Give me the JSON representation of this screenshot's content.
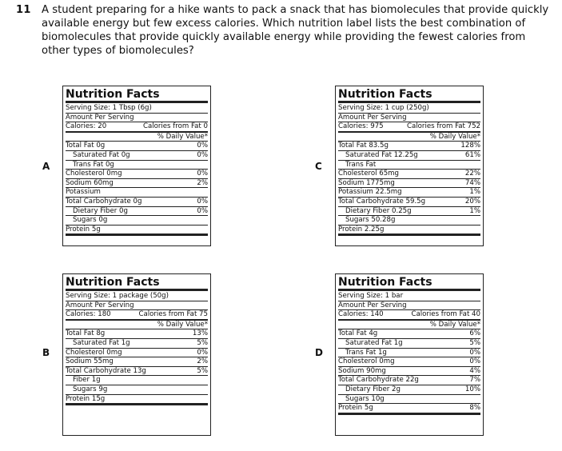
{
  "question": {
    "number": "11",
    "text": "A student preparing for a hike wants to pack a snack that has biomolecules that provide quickly available energy but few excess calories. Which nutrition label lists the best combination of biomolecules that provide quickly available energy while providing the fewest calories from other types of biomolecules?"
  },
  "options": {
    "A": {
      "letter": "A",
      "title": "Nutrition Facts",
      "serving": "Serving Size: 1 Tbsp (6g)",
      "amount": "Amount Per Serving",
      "calories": "Calories: 20",
      "calories_fat": "Calories from Fat 0",
      "dv_header": "% Daily Value*",
      "rows": [
        {
          "l": "Total Fat 0g",
          "r": "0%"
        },
        {
          "l": "Saturated Fat 0g",
          "r": "0%",
          "sub": true
        },
        {
          "l": "Trans Fat 0g",
          "r": "",
          "sub": true
        },
        {
          "l": "Cholesterol 0mg",
          "r": "0%"
        },
        {
          "l": "Sodium 60mg",
          "r": "2%"
        },
        {
          "l": "Potassium",
          "r": ""
        },
        {
          "l": "Total Carbohydrate 0g",
          "r": "0%"
        },
        {
          "l": "Dietary Fiber 0g",
          "r": "0%",
          "sub": true
        },
        {
          "l": "Sugars 0g",
          "r": "",
          "sub": true
        },
        {
          "l": "Protein 5g",
          "r": ""
        }
      ]
    },
    "B": {
      "letter": "B",
      "title": "Nutrition Facts",
      "serving": "Serving Size: 1 package (50g)",
      "amount": "Amount Per Serving",
      "calories": "Calories: 180",
      "calories_fat": "Calories from Fat 75",
      "dv_header": "% Daily Value*",
      "rows": [
        {
          "l": "Total Fat 8g",
          "r": "13%"
        },
        {
          "l": "Saturated Fat 1g",
          "r": "5%",
          "sub": true
        },
        {
          "l": "Cholesterol 0mg",
          "r": "0%"
        },
        {
          "l": "Sodium 55mg",
          "r": "2%"
        },
        {
          "l": "Total Carbohydrate 13g",
          "r": "5%"
        },
        {
          "l": "Fiber 1g",
          "r": "",
          "sub": true
        },
        {
          "l": "Sugars 9g",
          "r": "",
          "sub": true
        },
        {
          "l": "Protein 15g",
          "r": ""
        }
      ]
    },
    "C": {
      "letter": "C",
      "title": "Nutrition Facts",
      "serving": "Serving Size: 1 cup (250g)",
      "amount": "Amount Per Serving",
      "calories": "Calories: 975",
      "calories_fat": "Calories from Fat 752",
      "dv_header": "% Daily Value*",
      "rows": [
        {
          "l": "Total Fat 83.5g",
          "r": "128%"
        },
        {
          "l": "Saturated Fat 12.25g",
          "r": "61%",
          "sub": true
        },
        {
          "l": "Trans Fat",
          "r": "",
          "sub": true
        },
        {
          "l": "Cholesterol 65mg",
          "r": "22%"
        },
        {
          "l": "Sodium 1775mg",
          "r": "74%"
        },
        {
          "l": "Potassium 22.5mg",
          "r": "1%"
        },
        {
          "l": "Total Carbohydrate 59.5g",
          "r": "20%"
        },
        {
          "l": "Dietary Fiber 0.25g",
          "r": "1%",
          "sub": true
        },
        {
          "l": "Sugars 50.28g",
          "r": "",
          "sub": true
        },
        {
          "l": "Protein 2.25g",
          "r": ""
        }
      ]
    },
    "D": {
      "letter": "D",
      "title": "Nutrition Facts",
      "serving": "Serving Size: 1 bar",
      "amount": "Amount Per Serving",
      "calories": "Calories: 140",
      "calories_fat": "Calories from Fat 40",
      "dv_header": "% Daily Value*",
      "rows": [
        {
          "l": "Total Fat 4g",
          "r": "6%"
        },
        {
          "l": "Saturated Fat 1g",
          "r": "5%",
          "sub": true
        },
        {
          "l": "Trans Fat 1g",
          "r": "0%",
          "sub": true
        },
        {
          "l": "Cholesterol 0mg",
          "r": "0%"
        },
        {
          "l": "Sodium 90mg",
          "r": "4%"
        },
        {
          "l": "Total Carbohydrate 22g",
          "r": "7%"
        },
        {
          "l": "Dietary Fiber 2g",
          "r": "10%",
          "sub": true
        },
        {
          "l": "Sugars 10g",
          "r": "",
          "sub": true
        },
        {
          "l": "Protein 5g",
          "r": "8%"
        }
      ]
    }
  }
}
